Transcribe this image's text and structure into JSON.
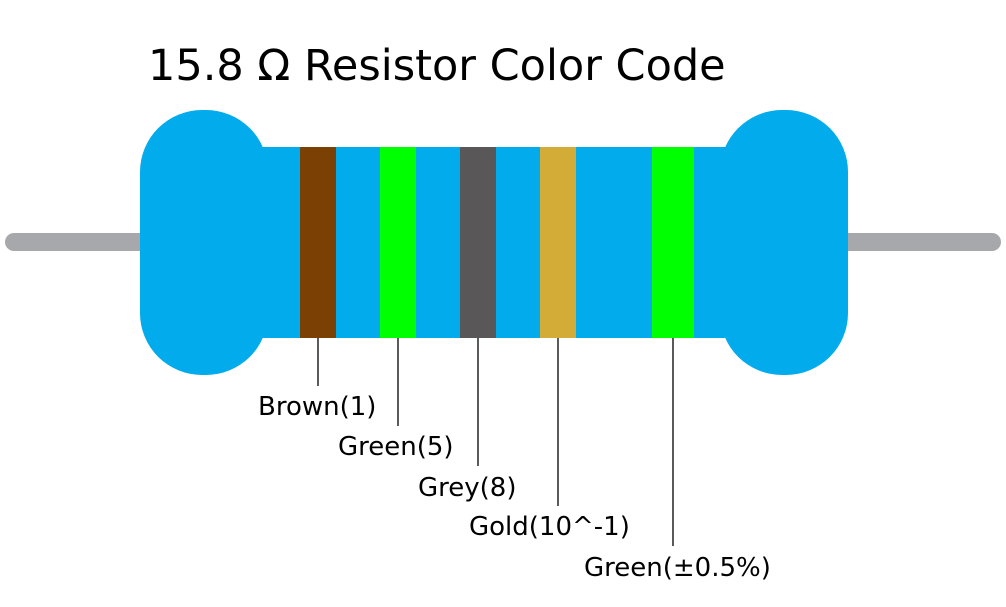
{
  "title": "15.8 Ω Resistor Color Code",
  "bands": [
    {
      "label": "Brown(1)"
    },
    {
      "label": "Green(5)"
    },
    {
      "label": "Grey(8)"
    },
    {
      "label": "Gold(10^-1)"
    },
    {
      "label": "Green(±0.5%)"
    }
  ]
}
